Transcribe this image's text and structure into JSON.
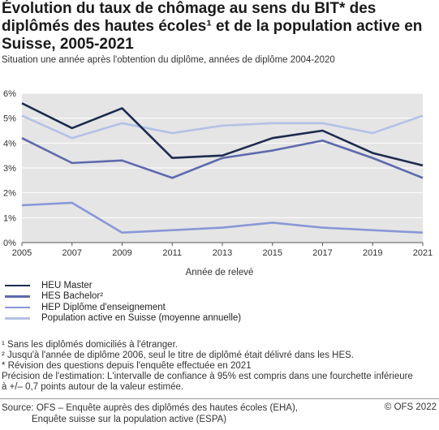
{
  "header": {
    "title": "Évolution du taux de chômage au sens du BIT* des diplômés des hautes écoles¹ et de la population active en Suisse, 2005-2021",
    "subtitle": "Situation une année après l'obtention du diplôme, années de diplôme 2004-2020"
  },
  "chart_data": {
    "type": "line",
    "title": "Évolution du taux de chômage au sens du BIT* des diplômés des hautes écoles¹ et de la population active en Suisse, 2005-2021",
    "subtitle": "Situation une année après l'obtention du diplôme, années de diplôme 2004-2020",
    "xlabel": "Année de relevé",
    "ylabel": "",
    "x": [
      2005,
      2007,
      2009,
      2011,
      2013,
      2015,
      2017,
      2019,
      2021
    ],
    "x_tick_labels": [
      "2005",
      "2007",
      "2009",
      "2011",
      "2013",
      "2015",
      "2017",
      "2019",
      "2021"
    ],
    "ylim": [
      0,
      6
    ],
    "y_ticks": [
      0,
      1,
      2,
      3,
      4,
      5,
      6
    ],
    "y_tick_labels": [
      "0%",
      "1%",
      "2%",
      "3%",
      "4%",
      "5%",
      "6%"
    ],
    "grid": true,
    "legend_position": "bottom-left",
    "series": [
      {
        "name": "HEU Master",
        "color": "#1c2b4f",
        "values": [
          5.6,
          4.6,
          5.4,
          3.4,
          3.5,
          4.2,
          4.5,
          3.6,
          3.1
        ]
      },
      {
        "name": "HES Bachelor²",
        "color": "#5e6aad",
        "values": [
          4.2,
          3.2,
          3.3,
          2.6,
          3.4,
          3.7,
          4.1,
          3.4,
          2.6
        ]
      },
      {
        "name": "HEP Diplôme d'enseignement",
        "color": "#8a97d6",
        "values": [
          1.5,
          1.6,
          0.4,
          0.5,
          0.6,
          0.8,
          0.6,
          0.5,
          0.4
        ]
      },
      {
        "name": "Population active en Suisse (moyenne annuelle)",
        "color": "#b4c1e6",
        "values": [
          5.1,
          4.2,
          4.8,
          4.4,
          4.7,
          4.8,
          4.8,
          4.4,
          5.1
        ]
      }
    ],
    "background_color": "#e5e5e5"
  },
  "footnotes": [
    "¹ Sans les diplômés domiciliés à l'étranger.",
    "² Jusqu'à l'année de diplôme 2006, seul le titre de diplômé était délivré dans les HES.",
    "* Révision des questions depuis l'enquête effectuée en 2021",
    "Précision de l'estimation: L'intervalle de confiance à 95% est compris dans une fourchette inférieure",
    "à +/– 0,7 points autour de la valeur estimée."
  ],
  "source": {
    "line1": "Source: OFS – Enquête auprès des diplômés des hautes écoles (EHA),",
    "line2": "Enquête suisse sur la population active (ESPA)"
  },
  "copyright": "© OFS 2022"
}
